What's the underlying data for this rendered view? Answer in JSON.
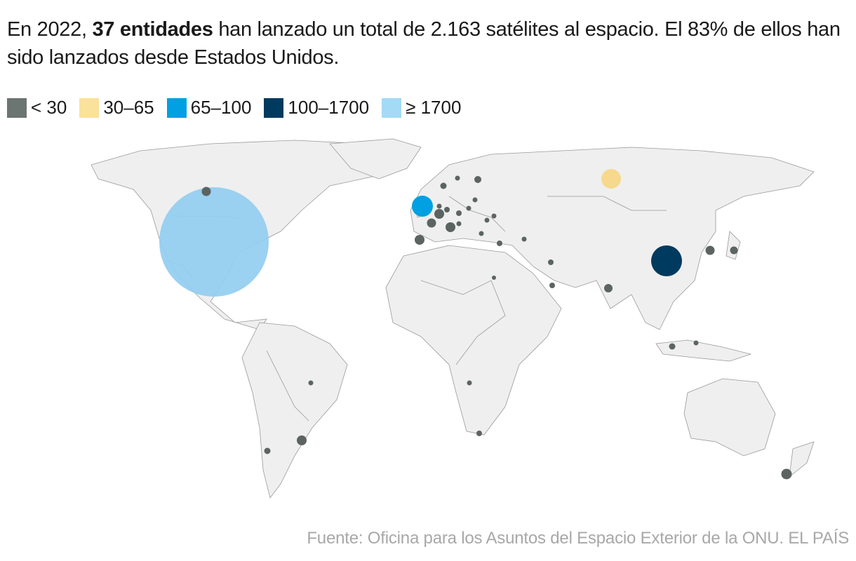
{
  "headline": {
    "part1": "En 2022, ",
    "bold": "37 entidades",
    "part2": " han lanzado un total de 2.163 satélites al espacio. El 83% de ellos han sido lanzados desde Estados Unidos."
  },
  "legend": [
    {
      "label": "< 30",
      "color": "#6b7572"
    },
    {
      "label": "30–65",
      "color": "#fbe29a"
    },
    {
      "label": "65–100",
      "color": "#00a0e2"
    },
    {
      "label": "100–1700",
      "color": "#003a5e"
    },
    {
      "label": "≥ 1700",
      "color": "#a4daf6"
    }
  ],
  "colors": {
    "land": "#eeeeee",
    "border": "#8a8a8a",
    "small": "#5c6462",
    "mid": "#f6d98c",
    "uk": "#00a0e2",
    "china": "#003a5e",
    "usa": "#92cdf0"
  },
  "chart_data": {
    "type": "bubble-map",
    "title": "En 2022, 37 entidades han lanzado un total de 2.163 satélites al espacio.",
    "legend_placement": "top-left",
    "categories": [
      "< 30",
      "30–65",
      "65–100",
      "100–1700",
      "≥ 1700"
    ],
    "points": [
      {
        "name": "Estados Unidos",
        "category": "≥ 1700",
        "lon": -97,
        "lat": 39
      },
      {
        "name": "Canadá",
        "category": "< 30",
        "lon": -106,
        "lat": 58
      },
      {
        "name": "Rusia",
        "category": "30–65",
        "lon": 95,
        "lat": 63
      },
      {
        "name": "Reino Unido",
        "category": "65–100",
        "lon": -2,
        "lat": 53
      },
      {
        "name": "China",
        "category": "100–1700",
        "lon": 105,
        "lat": 34
      }
    ],
    "small_points_count": 32
  },
  "source": "Fuente: Oficina para los Asuntos del Espacio Exterior de la ONU. EL PAÍS"
}
